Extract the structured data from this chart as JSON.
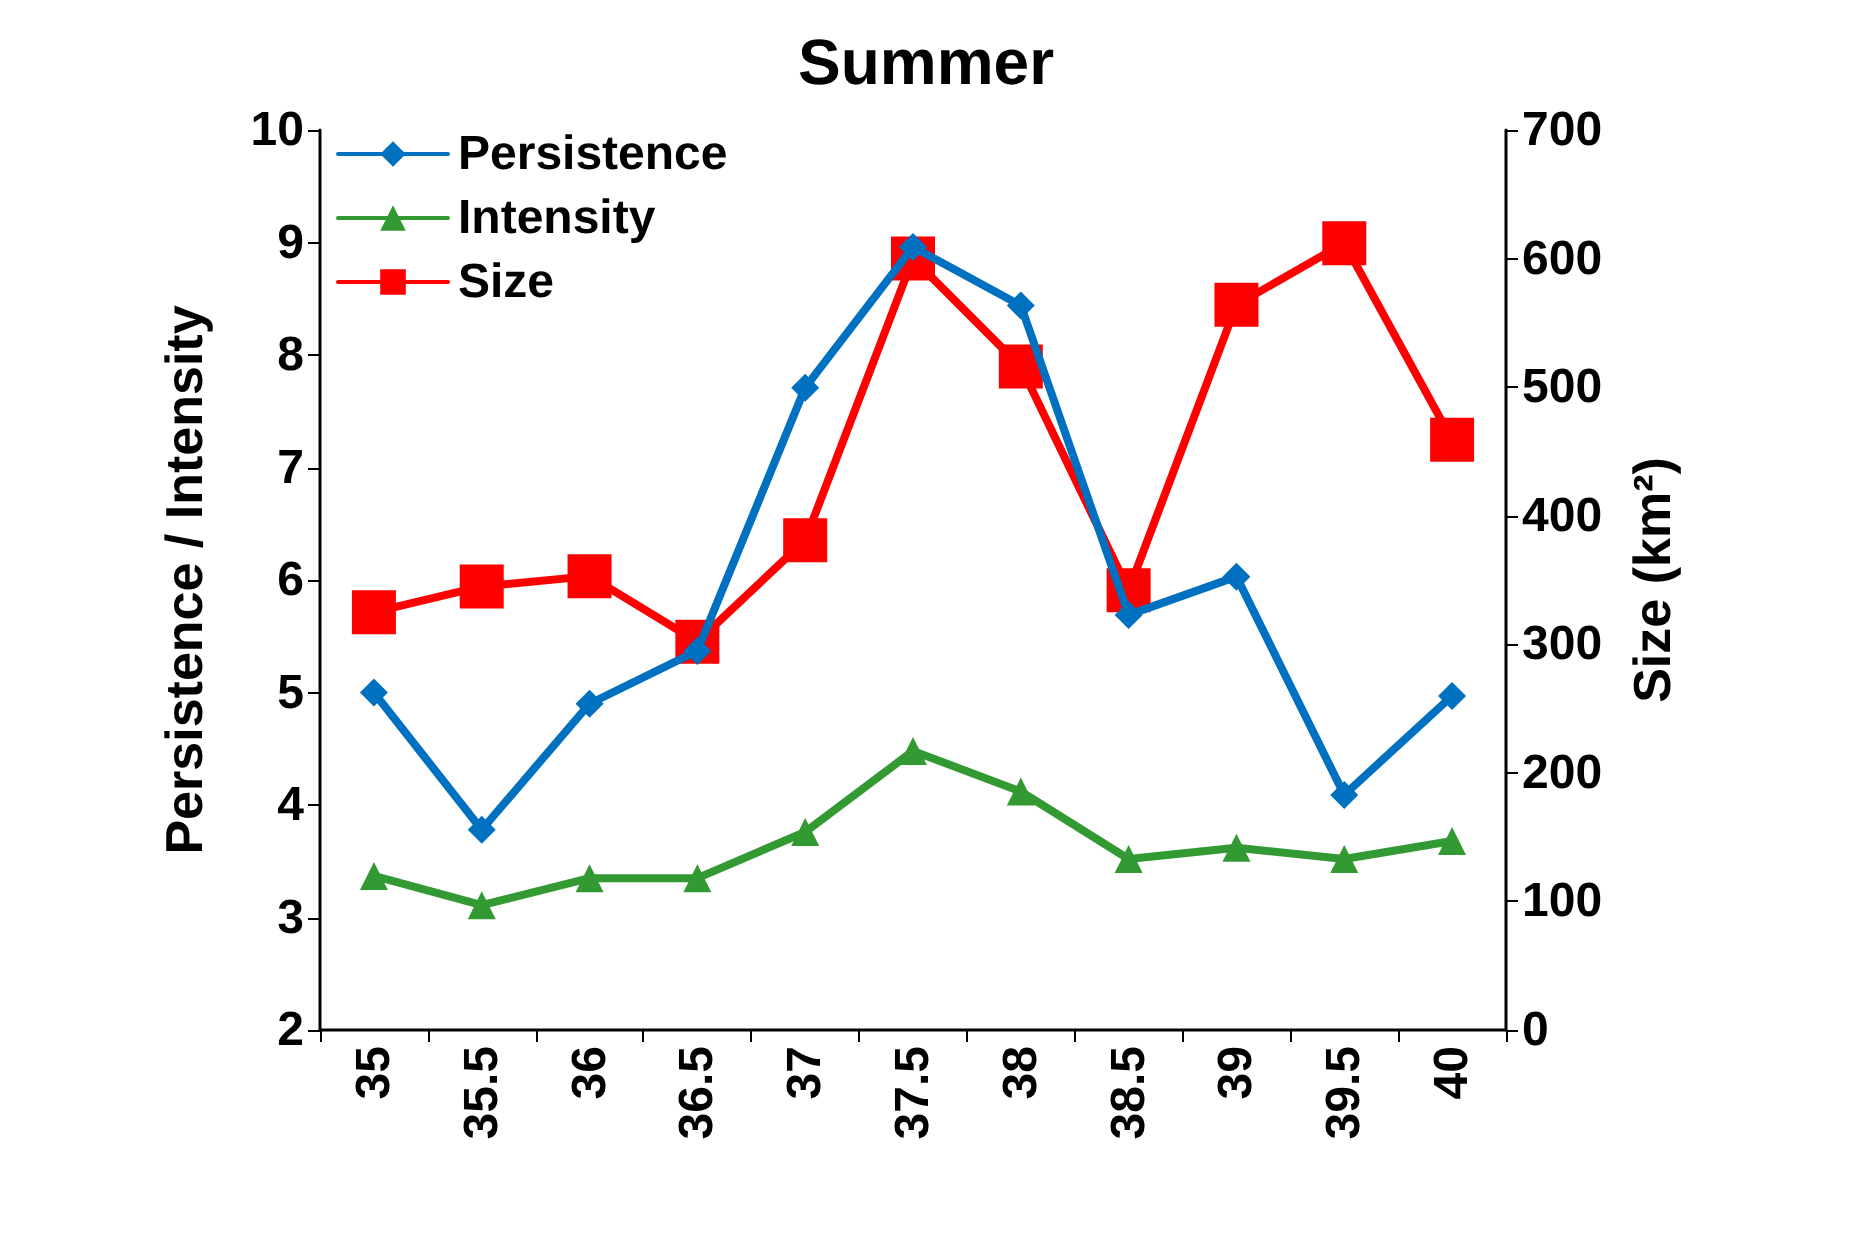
{
  "chart_data": {
    "type": "line",
    "title": "Summer",
    "ylabel": "Persistence / Intensity",
    "y2label": "Size (km²)",
    "categories": [
      "35",
      "35.5",
      "36",
      "36.5",
      "37",
      "37.5",
      "38",
      "38.5",
      "39",
      "39.5",
      "40"
    ],
    "ylim": [
      2,
      10
    ],
    "yticks": [
      2,
      3,
      4,
      5,
      6,
      7,
      8,
      9,
      10
    ],
    "y2lim": [
      0,
      700
    ],
    "y2ticks": [
      0,
      100,
      200,
      300,
      400,
      500,
      600,
      700
    ],
    "grid": false,
    "legend": "top left",
    "line_style": "solid",
    "series": [
      {
        "name": "Persistence",
        "color": "#0070c0",
        "marker": "diamond",
        "values": [
          5.0,
          3.78,
          4.9,
          5.37,
          7.71,
          8.96,
          8.44,
          5.69,
          6.03,
          4.09,
          4.97
        ]
      },
      {
        "name": "Intensity",
        "color": "#339933",
        "marker": "triangle",
        "values": [
          3.37,
          3.11,
          3.35,
          3.35,
          3.76,
          4.48,
          4.12,
          3.52,
          3.62,
          3.52,
          3.68
        ]
      },
      {
        "name": "Size",
        "color": "#ff0000",
        "marker": "square",
        "axis": "y2",
        "values": [
          325,
          345,
          353,
          302,
          381,
          600,
          516,
          342,
          564,
          612,
          459
        ]
      }
    ]
  }
}
